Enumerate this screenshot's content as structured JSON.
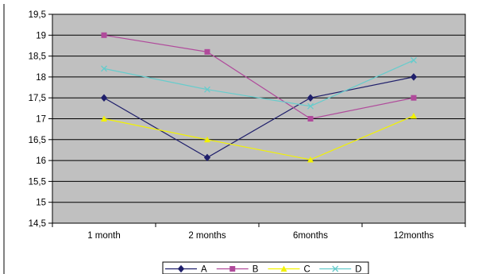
{
  "chart_data": {
    "type": "line",
    "categories": [
      "1 month",
      "2 months",
      "6months",
      "12months"
    ],
    "series": [
      {
        "name": "A",
        "values": [
          17.5,
          16.07,
          17.5,
          18.0
        ],
        "color": "#1f1f6b",
        "marker": "diamond"
      },
      {
        "name": "B",
        "values": [
          19.0,
          18.6,
          17.0,
          17.5
        ],
        "color": "#b04a9b",
        "marker": "square"
      },
      {
        "name": "C",
        "values": [
          17.0,
          16.5,
          16.02,
          17.07
        ],
        "color": "#f2f200",
        "marker": "triangle"
      },
      {
        "name": "D",
        "values": [
          18.2,
          17.7,
          17.3,
          18.4
        ],
        "color": "#66cccc",
        "marker": "x"
      }
    ],
    "yticks": [
      "19,5",
      "19",
      "18,5",
      "18",
      "17,5",
      "17",
      "16,5",
      "16",
      "15,5",
      "15",
      "14,5"
    ],
    "ylim": [
      14.5,
      19.5
    ],
    "ystep": 0.5,
    "grid": true,
    "plot_background": "#c0c0c0",
    "legend_position": "bottom"
  }
}
